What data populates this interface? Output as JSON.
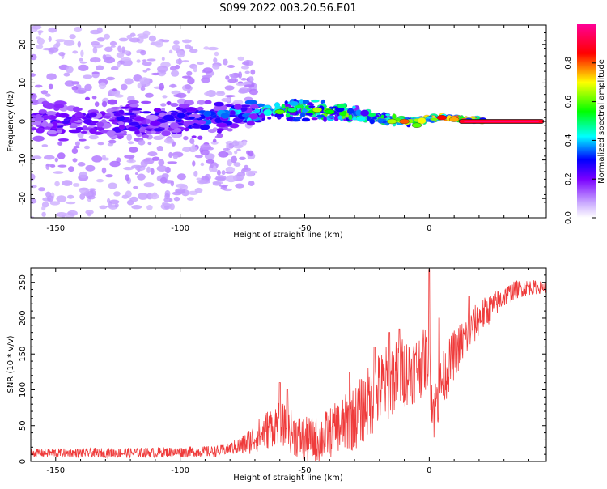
{
  "title": "S099.2022.003.20.56.E01",
  "colors": {
    "snr_line": "#ef3b3b",
    "blob_outline": "#9b62f0",
    "background": "#ffffff"
  },
  "chart_data": [
    {
      "type": "heatmap",
      "xlabel": "Height of straight line (km)",
      "ylabel": "Frequency (Hz)",
      "xlim": [
        -160,
        47
      ],
      "ylim": [
        -25,
        25
      ],
      "xticks": [
        -150,
        -100,
        -50,
        0
      ],
      "xtick_labels": [
        "-150",
        "-100",
        "-50",
        "0"
      ],
      "yticks": [
        -20,
        -10,
        0,
        10,
        20
      ],
      "ytick_labels": [
        "-20",
        "-10",
        "0",
        "10",
        "20"
      ],
      "colorbar": {
        "label": "Normalized spectral amplitude",
        "range": [
          0,
          1
        ],
        "ticks": [
          0.0,
          0.2,
          0.4,
          0.6,
          0.8
        ],
        "tick_labels": [
          "0.0",
          "0.2",
          "0.4",
          "0.6",
          "0.8"
        ],
        "colormap": [
          "#ffffff",
          "#7a00ff",
          "#0000ff",
          "#00ffff",
          "#00ff00",
          "#ffff00",
          "#ff0000",
          "#ff0096"
        ]
      },
      "description_points": [
        {
          "x": -150,
          "y_center": 0,
          "spread": 22,
          "amp": 0.25
        },
        {
          "x": -100,
          "y_center": 0,
          "spread": 18,
          "amp": 0.3
        },
        {
          "x": -60,
          "y_center": 3,
          "spread": 10,
          "amp": 0.55
        },
        {
          "x": -45,
          "y_center": 3,
          "spread": 9,
          "amp": 0.65
        },
        {
          "x": -10,
          "y_center": 0,
          "spread": 4,
          "amp": 0.7
        },
        {
          "x": 5,
          "y_center": 1,
          "spread": 2,
          "amp": 0.8
        },
        {
          "x": 30,
          "y_center": 0,
          "spread": 1,
          "amp": 0.9
        }
      ]
    },
    {
      "type": "line",
      "xlabel": "Height of straight line (km)",
      "ylabel": "SNR (10 * v/v)",
      "xlim": [
        -160,
        47
      ],
      "ylim": [
        0,
        270
      ],
      "xticks": [
        -150,
        -100,
        -50,
        0
      ],
      "xtick_labels": [
        "-150",
        "-100",
        "-50",
        "0"
      ],
      "yticks": [
        0,
        50,
        100,
        150,
        200,
        250
      ],
      "ytick_labels": [
        "0",
        "50",
        "100",
        "150",
        "200",
        "250"
      ],
      "trend": {
        "x": [
          -160,
          -120,
          -85,
          -75,
          -65,
          -60,
          -55,
          -50,
          -45,
          -40,
          -30,
          -25,
          -20,
          -15,
          -10,
          -5,
          -2,
          0,
          1,
          2,
          5,
          10,
          15,
          20,
          25,
          30,
          35,
          40,
          47
        ],
        "y": [
          12,
          12,
          14,
          22,
          45,
          55,
          40,
          30,
          30,
          40,
          60,
          80,
          100,
          115,
          125,
          130,
          140,
          150,
          90,
          70,
          110,
          150,
          175,
          200,
          215,
          230,
          240,
          243,
          243
        ]
      },
      "noise": {
        "x": [
          -160,
          -80,
          -65,
          -40,
          -20,
          0,
          10,
          30,
          47
        ],
        "amp": [
          6,
          8,
          28,
          35,
          55,
          45,
          35,
          15,
          8
        ]
      },
      "peaks": {
        "x": [
          -60,
          -57,
          -32,
          -22,
          -16,
          -12,
          0,
          4,
          16
        ],
        "y": [
          110,
          100,
          125,
          160,
          180,
          185,
          268,
          200,
          230
        ]
      }
    }
  ]
}
